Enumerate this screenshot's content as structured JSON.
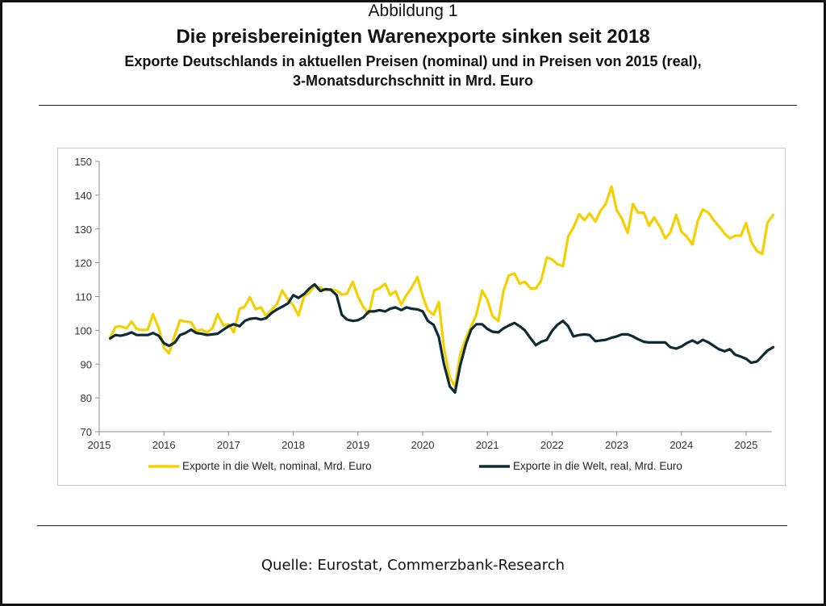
{
  "header": {
    "label": "Abbildung 1",
    "title": "Die preisbereinigten Warenexporte sinken seit 2018",
    "subtitle_line1": "Exporte Deutschlands in aktuellen Preisen (nominal) und in Preisen von 2015 (real),",
    "subtitle_line2": "3-Monatsdurchschnitt in Mrd. Euro"
  },
  "source": "Quelle: Eurostat, Commerzbank-Research",
  "chart_data": {
    "type": "line",
    "title": "Die preisbereinigten Warenexporte sinken seit 2018",
    "xlabel": "",
    "ylabel": "",
    "xlim": [
      2015,
      2025.4
    ],
    "ylim": [
      70,
      150
    ],
    "xticks": [
      "2015",
      "2016",
      "2017",
      "2018",
      "2019",
      "2020",
      "2021",
      "2022",
      "2023",
      "2024",
      "2025"
    ],
    "yticks": [
      70,
      80,
      90,
      100,
      110,
      120,
      130,
      140,
      150
    ],
    "grid": false,
    "legend": "bottom",
    "series": [
      {
        "name": "Exporte in die Welt, nominal, Mrd. Euro",
        "color": "#f5d000",
        "points": [
          [
            2015.17,
            97.8
          ],
          [
            2015.25,
            101.0
          ],
          [
            2015.33,
            101.2
          ],
          [
            2015.42,
            100.6
          ],
          [
            2015.5,
            102.6
          ],
          [
            2015.58,
            100.4
          ],
          [
            2015.67,
            100.1
          ],
          [
            2015.75,
            100.2
          ],
          [
            2015.83,
            104.8
          ],
          [
            2015.92,
            100.6
          ],
          [
            2016.0,
            94.8
          ],
          [
            2016.08,
            93.2
          ],
          [
            2016.17,
            98.6
          ],
          [
            2016.25,
            103.0
          ],
          [
            2016.33,
            102.6
          ],
          [
            2016.42,
            102.4
          ],
          [
            2016.5,
            99.8
          ],
          [
            2016.58,
            100.2
          ],
          [
            2016.67,
            99.4
          ],
          [
            2016.75,
            100.6
          ],
          [
            2016.83,
            104.8
          ],
          [
            2016.92,
            101.4
          ],
          [
            2017.0,
            101.8
          ],
          [
            2017.08,
            99.4
          ],
          [
            2017.17,
            106.4
          ],
          [
            2017.25,
            107.0
          ],
          [
            2017.33,
            109.8
          ],
          [
            2017.42,
            106.2
          ],
          [
            2017.5,
            106.8
          ],
          [
            2017.58,
            104.2
          ],
          [
            2017.67,
            106.2
          ],
          [
            2017.75,
            107.8
          ],
          [
            2017.83,
            111.8
          ],
          [
            2017.92,
            109.0
          ],
          [
            2018.0,
            107.4
          ],
          [
            2018.08,
            104.4
          ],
          [
            2018.17,
            110.2
          ],
          [
            2018.25,
            111.2
          ],
          [
            2018.33,
            113.2
          ],
          [
            2018.42,
            112.6
          ],
          [
            2018.5,
            111.8
          ],
          [
            2018.58,
            112.2
          ],
          [
            2018.67,
            111.8
          ],
          [
            2018.75,
            110.6
          ],
          [
            2018.83,
            110.8
          ],
          [
            2018.92,
            114.4
          ],
          [
            2019.0,
            110.0
          ],
          [
            2019.08,
            107.0
          ],
          [
            2019.17,
            105.0
          ],
          [
            2019.25,
            111.8
          ],
          [
            2019.33,
            112.4
          ],
          [
            2019.42,
            113.8
          ],
          [
            2019.5,
            110.4
          ],
          [
            2019.58,
            111.6
          ],
          [
            2019.67,
            107.6
          ],
          [
            2019.75,
            110.4
          ],
          [
            2019.83,
            112.6
          ],
          [
            2019.92,
            115.8
          ],
          [
            2020.0,
            110.2
          ],
          [
            2020.08,
            106.0
          ],
          [
            2020.17,
            104.6
          ],
          [
            2020.25,
            108.4
          ],
          [
            2020.33,
            94.8
          ],
          [
            2020.42,
            86.0
          ],
          [
            2020.5,
            83.4
          ],
          [
            2020.58,
            92.8
          ],
          [
            2020.67,
            97.8
          ],
          [
            2020.75,
            101.2
          ],
          [
            2020.83,
            104.6
          ],
          [
            2020.92,
            111.8
          ],
          [
            2021.0,
            109.0
          ],
          [
            2021.08,
            104.2
          ],
          [
            2021.17,
            102.8
          ],
          [
            2021.25,
            111.6
          ],
          [
            2021.33,
            116.2
          ],
          [
            2021.42,
            116.8
          ],
          [
            2021.5,
            113.8
          ],
          [
            2021.58,
            114.4
          ],
          [
            2021.67,
            112.4
          ],
          [
            2021.75,
            112.4
          ],
          [
            2021.83,
            114.6
          ],
          [
            2021.92,
            121.6
          ],
          [
            2022.0,
            121.0
          ],
          [
            2022.08,
            119.6
          ],
          [
            2022.17,
            119.0
          ],
          [
            2022.25,
            127.8
          ],
          [
            2022.33,
            130.4
          ],
          [
            2022.42,
            134.4
          ],
          [
            2022.5,
            132.6
          ],
          [
            2022.58,
            134.6
          ],
          [
            2022.67,
            132.2
          ],
          [
            2022.75,
            135.4
          ],
          [
            2022.83,
            137.4
          ],
          [
            2022.92,
            142.6
          ],
          [
            2023.0,
            135.6
          ],
          [
            2023.08,
            133.0
          ],
          [
            2023.17,
            128.8
          ],
          [
            2023.25,
            137.4
          ],
          [
            2023.33,
            134.8
          ],
          [
            2023.42,
            134.8
          ],
          [
            2023.5,
            131.0
          ],
          [
            2023.58,
            133.4
          ],
          [
            2023.67,
            130.6
          ],
          [
            2023.75,
            127.2
          ],
          [
            2023.83,
            129.0
          ],
          [
            2023.92,
            134.2
          ],
          [
            2024.0,
            129.2
          ],
          [
            2024.08,
            127.8
          ],
          [
            2024.17,
            125.4
          ],
          [
            2024.25,
            132.2
          ],
          [
            2024.33,
            135.8
          ],
          [
            2024.42,
            134.8
          ],
          [
            2024.5,
            132.6
          ],
          [
            2024.58,
            130.8
          ],
          [
            2024.67,
            128.6
          ],
          [
            2024.75,
            127.2
          ],
          [
            2024.83,
            128.0
          ],
          [
            2024.92,
            128.0
          ],
          [
            2025.0,
            131.8
          ],
          [
            2025.08,
            126.2
          ],
          [
            2025.17,
            123.4
          ],
          [
            2025.25,
            122.6
          ],
          [
            2025.33,
            131.8
          ],
          [
            2025.42,
            134.2
          ]
        ]
      },
      {
        "name": "Exporte in die Welt, real, Mrd. Euro",
        "color": "#0d2b35",
        "points": [
          [
            2015.17,
            97.6
          ],
          [
            2015.25,
            98.6
          ],
          [
            2015.33,
            98.4
          ],
          [
            2015.42,
            98.8
          ],
          [
            2015.5,
            99.4
          ],
          [
            2015.58,
            98.6
          ],
          [
            2015.67,
            98.6
          ],
          [
            2015.75,
            98.6
          ],
          [
            2015.83,
            99.2
          ],
          [
            2015.92,
            98.4
          ],
          [
            2016.0,
            96.2
          ],
          [
            2016.08,
            95.4
          ],
          [
            2016.17,
            96.4
          ],
          [
            2016.25,
            98.6
          ],
          [
            2016.33,
            99.2
          ],
          [
            2016.42,
            100.2
          ],
          [
            2016.5,
            99.2
          ],
          [
            2016.58,
            99.0
          ],
          [
            2016.67,
            98.6
          ],
          [
            2016.75,
            98.8
          ],
          [
            2016.83,
            99.0
          ],
          [
            2016.92,
            100.2
          ],
          [
            2017.0,
            101.2
          ],
          [
            2017.08,
            101.8
          ],
          [
            2017.17,
            101.2
          ],
          [
            2017.25,
            102.8
          ],
          [
            2017.33,
            103.4
          ],
          [
            2017.42,
            103.6
          ],
          [
            2017.5,
            103.2
          ],
          [
            2017.58,
            103.6
          ],
          [
            2017.67,
            105.2
          ],
          [
            2017.75,
            106.2
          ],
          [
            2017.83,
            107.0
          ],
          [
            2017.92,
            108.0
          ],
          [
            2018.0,
            110.4
          ],
          [
            2018.08,
            109.6
          ],
          [
            2018.17,
            110.8
          ],
          [
            2018.25,
            112.4
          ],
          [
            2018.33,
            113.6
          ],
          [
            2018.42,
            111.6
          ],
          [
            2018.5,
            112.2
          ],
          [
            2018.58,
            112.0
          ],
          [
            2018.67,
            110.4
          ],
          [
            2018.75,
            104.6
          ],
          [
            2018.83,
            103.2
          ],
          [
            2018.92,
            102.8
          ],
          [
            2019.0,
            103.0
          ],
          [
            2019.08,
            103.8
          ],
          [
            2019.17,
            105.6
          ],
          [
            2019.25,
            105.6
          ],
          [
            2019.33,
            106.0
          ],
          [
            2019.42,
            105.6
          ],
          [
            2019.5,
            106.4
          ],
          [
            2019.58,
            106.8
          ],
          [
            2019.67,
            106.0
          ],
          [
            2019.75,
            106.8
          ],
          [
            2019.83,
            106.4
          ],
          [
            2019.92,
            106.2
          ],
          [
            2020.0,
            105.6
          ],
          [
            2020.08,
            102.8
          ],
          [
            2020.17,
            101.6
          ],
          [
            2020.25,
            98.0
          ],
          [
            2020.33,
            90.0
          ],
          [
            2020.42,
            83.4
          ],
          [
            2020.5,
            81.6
          ],
          [
            2020.58,
            89.6
          ],
          [
            2020.67,
            96.0
          ],
          [
            2020.75,
            100.2
          ],
          [
            2020.83,
            101.8
          ],
          [
            2020.92,
            101.8
          ],
          [
            2021.0,
            100.4
          ],
          [
            2021.08,
            99.6
          ],
          [
            2021.17,
            99.4
          ],
          [
            2021.25,
            100.6
          ],
          [
            2021.33,
            101.4
          ],
          [
            2021.42,
            102.2
          ],
          [
            2021.5,
            101.2
          ],
          [
            2021.58,
            100.0
          ],
          [
            2021.67,
            97.6
          ],
          [
            2021.75,
            95.6
          ],
          [
            2021.83,
            96.6
          ],
          [
            2021.92,
            97.2
          ],
          [
            2022.0,
            99.8
          ],
          [
            2022.08,
            101.6
          ],
          [
            2022.17,
            102.8
          ],
          [
            2022.25,
            101.2
          ],
          [
            2022.33,
            98.2
          ],
          [
            2022.42,
            98.6
          ],
          [
            2022.5,
            98.8
          ],
          [
            2022.58,
            98.6
          ],
          [
            2022.67,
            96.8
          ],
          [
            2022.75,
            97.0
          ],
          [
            2022.83,
            97.2
          ],
          [
            2022.92,
            97.8
          ],
          [
            2023.0,
            98.2
          ],
          [
            2023.08,
            98.8
          ],
          [
            2023.17,
            98.8
          ],
          [
            2023.25,
            98.2
          ],
          [
            2023.33,
            97.4
          ],
          [
            2023.42,
            96.6
          ],
          [
            2023.5,
            96.4
          ],
          [
            2023.58,
            96.4
          ],
          [
            2023.67,
            96.4
          ],
          [
            2023.75,
            96.4
          ],
          [
            2023.83,
            95.0
          ],
          [
            2023.92,
            94.6
          ],
          [
            2024.0,
            95.2
          ],
          [
            2024.08,
            96.2
          ],
          [
            2024.17,
            97.0
          ],
          [
            2024.25,
            96.2
          ],
          [
            2024.33,
            97.2
          ],
          [
            2024.42,
            96.4
          ],
          [
            2024.5,
            95.4
          ],
          [
            2024.58,
            94.4
          ],
          [
            2024.67,
            93.8
          ],
          [
            2024.75,
            94.4
          ],
          [
            2024.83,
            92.8
          ],
          [
            2024.92,
            92.2
          ],
          [
            2025.0,
            91.6
          ],
          [
            2025.08,
            90.4
          ],
          [
            2025.17,
            90.8
          ],
          [
            2025.25,
            92.4
          ],
          [
            2025.33,
            94.0
          ],
          [
            2025.42,
            95.0
          ]
        ]
      }
    ]
  }
}
